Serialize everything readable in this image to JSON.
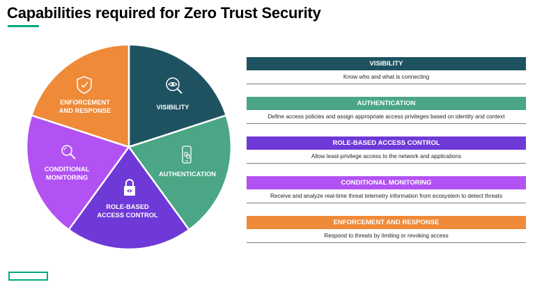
{
  "title": "Capabilities required for Zero Trust Security",
  "wheel": {
    "segments": [
      {
        "lines": [
          "VISIBILITY"
        ],
        "color": "#1e5261",
        "icon": "eye-magnifier-icon"
      },
      {
        "lines": [
          "AUTHENTICATION"
        ],
        "color": "#4aa684",
        "icon": "phone-auth-icon"
      },
      {
        "lines": [
          "ROLE-BASED",
          "ACCESS CONTROL"
        ],
        "color": "#6e39d7",
        "icon": "lock-icon"
      },
      {
        "lines": [
          "CONDITIONAL",
          "MONITORING"
        ],
        "color": "#b252f2",
        "icon": "search-icon"
      },
      {
        "lines": [
          "ENFORCEMENT",
          "AND RESPONSE"
        ],
        "color": "#ee8a38",
        "icon": "shield-check-icon"
      }
    ]
  },
  "capabilities": [
    {
      "title": "VISIBILITY",
      "description": "Know who and what is connecting",
      "color": "#1e5261"
    },
    {
      "title": "AUTHENTICATION",
      "description": "Define access policies and assign appropriate access privileges based on identity and context",
      "color": "#4aa684"
    },
    {
      "title": "ROLE-BASED ACCESS CONTROL",
      "description": "Allow least-privilege access to the network and applications",
      "color": "#6e39d7"
    },
    {
      "title": "CONDITIONAL MONITORING",
      "description": "Receive and analyze real-time threat telemetry information from ecosystem to detect threats",
      "color": "#b252f2"
    },
    {
      "title": "ENFORCEMENT AND RESPONSE",
      "description": "Respond to threats by limiting or revoking access",
      "color": "#ee8a38"
    }
  ]
}
